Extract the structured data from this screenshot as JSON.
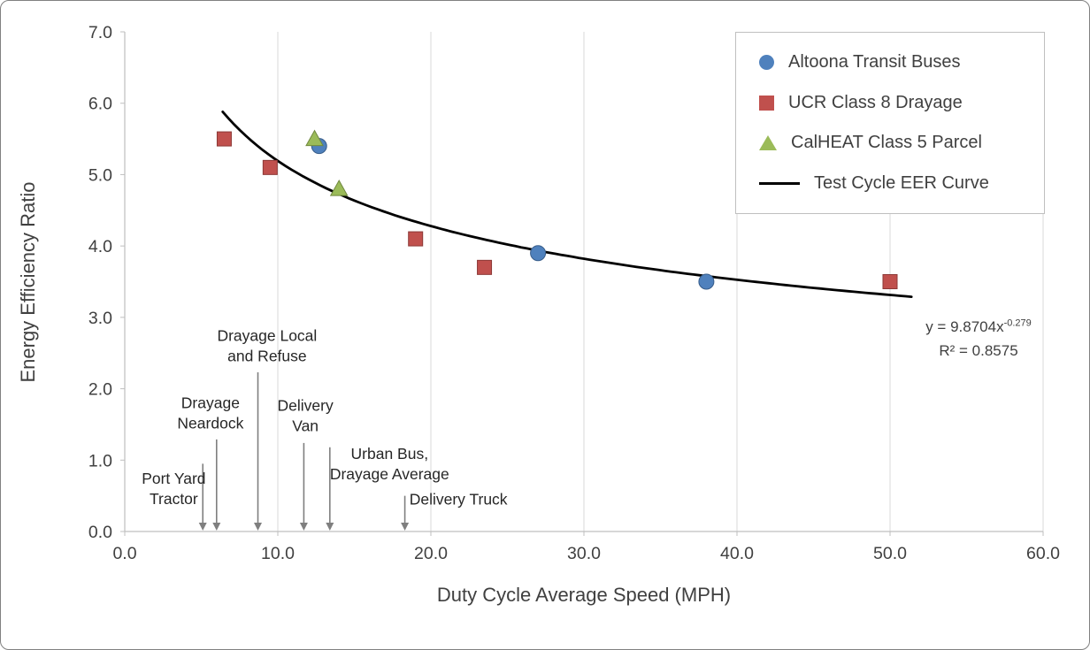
{
  "figure": {
    "x_axis_title": "Duty Cycle Average Speed (MPH)",
    "y_axis_title": "Energy Efficiency Ratio",
    "equation_base": "y = 9.8704x",
    "equation_exponent": "-0.279",
    "r_squared": "R² = 0.8575"
  },
  "legend": {
    "position": "top-right",
    "items": [
      {
        "label": "Altoona Transit Buses",
        "marker": "circle",
        "color": "#4F81BD"
      },
      {
        "label": "UCR Class 8 Drayage",
        "marker": "square",
        "color": "#C0504D"
      },
      {
        "label": "CalHEAT Class 5 Parcel",
        "marker": "triangle",
        "color": "#9BBB59"
      },
      {
        "label": "Test Cycle EER Curve",
        "marker": "line",
        "color": "#000000"
      }
    ]
  },
  "chart_data": {
    "type": "scatter",
    "title": "",
    "xlabel": "Duty Cycle Average Speed (MPH)",
    "ylabel": "Energy Efficiency Ratio",
    "xlim": [
      0,
      60
    ],
    "ylim": [
      0,
      7
    ],
    "x_tick_values": [
      0,
      10,
      20,
      30,
      40,
      50,
      60
    ],
    "x_tick_labels": [
      "0.0",
      "10.0",
      "20.0",
      "30.0",
      "40.0",
      "50.0",
      "60.0"
    ],
    "y_tick_values": [
      0,
      1,
      2,
      3,
      4,
      5,
      6,
      7
    ],
    "y_tick_labels": [
      "0.0",
      "1.0",
      "2.0",
      "3.0",
      "4.0",
      "5.0",
      "6.0",
      "7.0"
    ],
    "grid": "vertical-only",
    "legend_position": "top-right",
    "series": [
      {
        "name": "Altoona Transit Buses",
        "marker": "circle",
        "color": "#4F81BD",
        "edge_color": "#385D8A",
        "points": [
          [
            12.7,
            5.4
          ],
          [
            27.0,
            3.9
          ],
          [
            38.0,
            3.5
          ]
        ]
      },
      {
        "name": "UCR Class 8 Drayage",
        "marker": "square",
        "color": "#C0504D",
        "edge_color": "#8C3836",
        "points": [
          [
            6.5,
            5.5
          ],
          [
            9.5,
            5.1
          ],
          [
            19.0,
            4.1
          ],
          [
            23.5,
            3.7
          ],
          [
            50.0,
            3.5
          ]
        ]
      },
      {
        "name": "CalHEAT Class 5 Parcel",
        "marker": "triangle",
        "color": "#9BBB59",
        "edge_color": "#71893F",
        "points": [
          [
            12.4,
            5.5
          ],
          [
            14.0,
            4.8
          ]
        ]
      }
    ],
    "trendline": {
      "name": "Test Cycle EER Curve",
      "fit_type": "power",
      "coefficient": 9.8704,
      "exponent": -0.279,
      "r_squared": 0.8575,
      "equation_label": "y = 9.8704x^-0.279",
      "r_squared_label": "R² = 0.8575",
      "x_start": 6.4,
      "x_end": 51.4,
      "color": "#000000"
    },
    "annotations": [
      {
        "lines": [
          "Port Yard",
          "Tractor"
        ],
        "label_x": 3.2,
        "label_y": 0.6,
        "arrow_x": 5.1,
        "arrow_top": 0.95
      },
      {
        "lines": [
          "Drayage",
          "Neardock"
        ],
        "label_x": 5.6,
        "label_y": 1.66,
        "arrow_x": 6.0,
        "arrow_top": 1.29
      },
      {
        "lines": [
          "Drayage Local",
          "and Refuse"
        ],
        "label_x": 9.3,
        "label_y": 2.6,
        "arrow_x": 8.7,
        "arrow_top": 2.23
      },
      {
        "lines": [
          "Delivery",
          "Van"
        ],
        "label_x": 11.8,
        "label_y": 1.62,
        "arrow_x": 11.7,
        "arrow_top": 1.24
      },
      {
        "lines": [
          "Urban Bus,",
          "Drayage Average"
        ],
        "label_x": 17.3,
        "label_y": 0.95,
        "arrow_x": 13.4,
        "arrow_top": 1.18
      },
      {
        "lines": [
          "Delivery Truck"
        ],
        "label_x": 21.8,
        "label_y": 0.45,
        "arrow_x": 18.3,
        "arrow_top": 0.5
      }
    ],
    "style": {
      "grid_color": "#D9D9D9",
      "axis_color": "#BFBFBF",
      "text_color": "#404040",
      "annotation_color": "#262626",
      "arrow_color": "#7F7F7F"
    }
  }
}
